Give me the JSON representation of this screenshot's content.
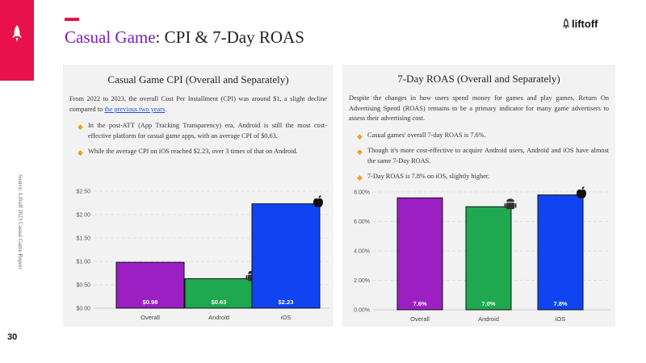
{
  "page": {
    "number": "30",
    "source": "Source: Liftoff 2023 Casual Game Report",
    "title_highlight": "Casual Game",
    "title_rest": ": CPI & 7-Day ROAS",
    "logo_text": "liftoff"
  },
  "colors": {
    "brand_red": "#e8114b",
    "purple": "#9b1fc2",
    "green": "#1ea84f",
    "blue": "#1044f2",
    "bullet": "#f0a11c"
  },
  "left_panel": {
    "title": "Casual Game CPI (Overall and Separately)",
    "desc_before_link": "From 2022 to 2023, the overall Cost Per Installment (CPI) was around $1, a slight decline compared to ",
    "desc_link": "the previous two years",
    "desc_after_link": ".",
    "bullets": [
      "In the post-ATT (App Tracking Transparency) era, Android is still the most cost-effective platform for casual game apps, with an average CPI of $0.63.",
      "While the average CPI on iOS reached $2.23, over 3 times of that on Android."
    ]
  },
  "right_panel": {
    "title": "7-Day ROAS (Overall and Separately)",
    "desc": "Despite the changes in how users spend money for games and play games, Return On Advertising Spend (ROAS) remains to be a primary indicator for many game advertisers to assess their advertising cost.",
    "bullets": [
      "Casual games' overall 7-day ROAS is 7.6%.",
      "Though it's more cost-effective to acquire Android users, Android and iOS have almost the same 7-Day ROAS.",
      "7-Day ROAS is 7.8% on iOS, slightly higher."
    ]
  },
  "chart_data": [
    {
      "type": "bar",
      "title": "Casual Game CPI (Overall and Separately)",
      "categories": [
        "Overall",
        "Android",
        "iOS"
      ],
      "values": [
        0.98,
        0.63,
        2.23
      ],
      "value_labels": [
        "$0.98",
        "$0.63",
        "$2.23"
      ],
      "yticks": [
        0,
        0.5,
        1.0,
        1.5,
        2.0,
        2.5
      ],
      "ytick_labels": [
        "$0.00",
        "$0.50",
        "$1.00",
        "$1.50",
        "$2.00",
        "$2.50"
      ],
      "ylim": [
        0,
        2.5
      ],
      "bar_colors": [
        "#9b1fc2",
        "#1ea84f",
        "#1044f2"
      ],
      "xlabel": "",
      "ylabel": "",
      "grid": true
    },
    {
      "type": "bar",
      "title": "7-Day ROAS (Overall and Separately)",
      "categories": [
        "Overall",
        "Android",
        "iOS"
      ],
      "values": [
        7.6,
        7.0,
        7.8
      ],
      "value_labels": [
        "7.6%",
        "7.0%",
        "7.8%"
      ],
      "yticks": [
        0,
        2,
        4,
        6,
        8
      ],
      "ytick_labels": [
        "0.00%",
        "2.00%",
        "4.00%",
        "6.00%",
        "8.00%"
      ],
      "ylim": [
        0,
        8
      ],
      "bar_colors": [
        "#9b1fc2",
        "#1ea84f",
        "#1044f2"
      ],
      "xlabel": "",
      "ylabel": "",
      "grid": true
    }
  ]
}
